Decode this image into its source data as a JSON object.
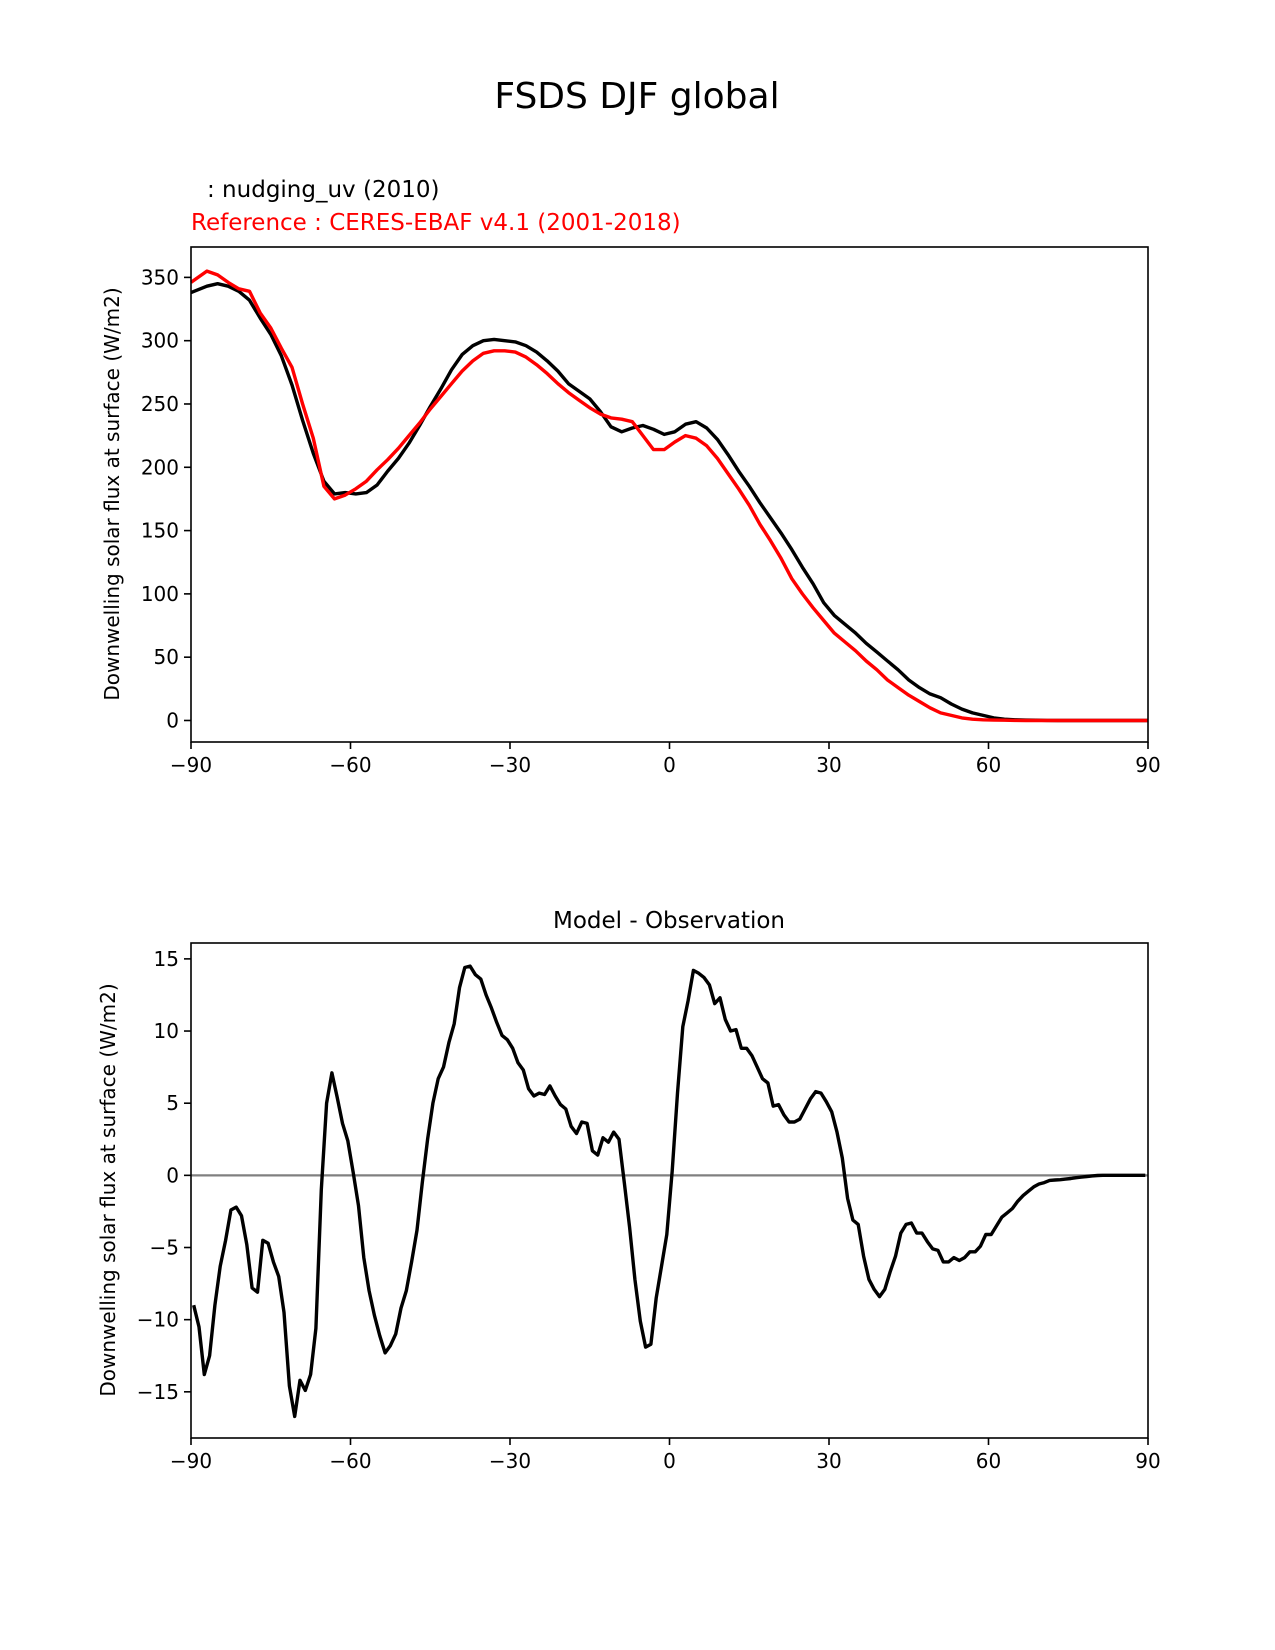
{
  "figure_title": "FSDS DJF global",
  "colors": {
    "model": "#000000",
    "reference": "#ff0000",
    "zero_line": "#808080",
    "axes": "#000000"
  },
  "chart_data": [
    {
      "type": "line",
      "id": "top",
      "test_label": ": nudging_uv (2010)",
      "ref_label": "Reference : CERES-EBAF v4.1 (2001-2018)",
      "title": "",
      "xlabel": "",
      "ylabel": "Downwelling solar flux at surface (W/m2)",
      "xlim": [
        -90,
        90
      ],
      "ylim": [
        -17,
        374
      ],
      "xticks": [
        -90,
        -60,
        -30,
        0,
        30,
        60,
        90
      ],
      "xtick_labels": [
        "−90",
        "−60",
        "−30",
        "0",
        "30",
        "60",
        "90"
      ],
      "yticks": [
        0,
        50,
        100,
        150,
        200,
        250,
        300,
        350
      ],
      "ytick_labels": [
        "0",
        "50",
        "100",
        "150",
        "200",
        "250",
        "300",
        "350"
      ],
      "series": [
        {
          "name": "nudging_uv (2010)",
          "color": "#000000",
          "x": [
            -90,
            -87,
            -85,
            -83,
            -81,
            -79,
            -77,
            -75,
            -73,
            -71,
            -69,
            -67,
            -65,
            -63,
            -61,
            -59,
            -57,
            -55,
            -53,
            -51,
            -49,
            -47,
            -45,
            -43,
            -41,
            -39,
            -37,
            -35,
            -33,
            -31,
            -29,
            -27,
            -25,
            -23,
            -21,
            -19,
            -17,
            -15,
            -13,
            -11,
            -9,
            -7,
            -5,
            -3,
            -1,
            1,
            3,
            5,
            7,
            9,
            11,
            13,
            15,
            17,
            19,
            21,
            23,
            25,
            27,
            29,
            31,
            33,
            35,
            37,
            39,
            41,
            43,
            45,
            47,
            49,
            51,
            53,
            55,
            57,
            59,
            61,
            63,
            65,
            67,
            69,
            71,
            73,
            75,
            77,
            79,
            81,
            84,
            87,
            90
          ],
          "y": [
            338,
            343,
            345,
            343,
            339,
            332,
            318,
            305,
            288,
            265,
            237,
            211,
            189,
            179,
            180,
            179,
            180,
            186,
            197,
            207,
            219,
            233,
            248,
            262,
            277,
            289,
            296,
            300,
            301,
            300,
            299,
            296,
            291,
            284,
            276,
            266,
            260,
            254,
            244,
            232,
            228,
            231,
            233,
            230,
            226,
            228,
            234,
            236,
            231,
            222,
            210,
            197,
            185,
            172,
            160,
            148,
            135,
            121,
            108,
            93,
            83,
            76,
            69,
            61,
            54,
            47,
            40,
            32,
            26,
            21,
            18,
            13,
            9,
            6,
            4,
            2,
            1,
            0.5,
            0.3,
            0.2,
            0.1,
            0,
            0,
            0,
            0,
            0,
            0,
            0,
            0
          ]
        },
        {
          "name": "CERES-EBAF v4.1 (2001-2018)",
          "color": "#ff0000",
          "x": [
            -90,
            -89,
            -87,
            -85,
            -83,
            -81,
            -79,
            -77,
            -75,
            -73,
            -71,
            -69,
            -67,
            -65,
            -63,
            -61,
            -59,
            -57,
            -55,
            -53,
            -51,
            -49,
            -47,
            -45,
            -43,
            -41,
            -39,
            -37,
            -35,
            -33,
            -31,
            -29,
            -27,
            -25,
            -23,
            -21,
            -19,
            -17,
            -15,
            -13,
            -11,
            -9,
            -7,
            -5,
            -3,
            -1,
            1,
            3,
            5,
            7,
            9,
            11,
            13,
            15,
            17,
            19,
            21,
            23,
            25,
            27,
            29,
            31,
            33,
            35,
            37,
            39,
            41,
            43,
            45,
            47,
            49,
            51,
            53,
            55,
            57,
            59,
            61,
            63,
            65,
            67,
            69,
            71,
            73,
            75,
            77,
            79,
            81,
            84,
            87,
            90
          ],
          "y": [
            346,
            349,
            355,
            352,
            346,
            341,
            339,
            322,
            310,
            294,
            279,
            250,
            223,
            185,
            175,
            178,
            183,
            189,
            198,
            206,
            215,
            225,
            235,
            246,
            256,
            266,
            276,
            284,
            290,
            292,
            292,
            291,
            287,
            281,
            274,
            266,
            259,
            253,
            247,
            242,
            239,
            238,
            236,
            225,
            214,
            214,
            220,
            225,
            223,
            217,
            207,
            195,
            183,
            170,
            155,
            142,
            128,
            112,
            100,
            89,
            79,
            69,
            62,
            55,
            47,
            40,
            32,
            26,
            20,
            15,
            10,
            6,
            4,
            2,
            1,
            0.5,
            0.3,
            0.2,
            0.1,
            0,
            0,
            0,
            0,
            0,
            0,
            0,
            0,
            0,
            0,
            0
          ]
        }
      ]
    },
    {
      "type": "line",
      "id": "bottom",
      "title": "Model - Observation",
      "xlabel": "",
      "ylabel": "Downwelling solar flux at surface (W/m2)",
      "xlim": [
        -90,
        90
      ],
      "ylim": [
        -18.2,
        16.1
      ],
      "xticks": [
        -90,
        -60,
        -30,
        0,
        30,
        60,
        90
      ],
      "xtick_labels": [
        "−90",
        "−60",
        "−30",
        "0",
        "30",
        "60",
        "90"
      ],
      "yticks": [
        -15,
        -10,
        -5,
        0,
        5,
        10,
        15
      ],
      "ytick_labels": [
        "−15",
        "−10",
        "−5",
        "0",
        "5",
        "10",
        "15"
      ],
      "zero_line": true,
      "series": [
        {
          "name": "Model - Observation",
          "color": "#000000",
          "x": [
            -89.5,
            -88.5,
            -87.5,
            -86.5,
            -85.5,
            -84.5,
            -83.5,
            -82.5,
            -81.5,
            -80.5,
            -79.5,
            -78.5,
            -77.5,
            -76.5,
            -75.5,
            -74.5,
            -73.5,
            -72.5,
            -71.5,
            -70.5,
            -69.5,
            -68.5,
            -67.5,
            -66.5,
            -65.5,
            -64.5,
            -63.5,
            -62.5,
            -61.5,
            -60.5,
            -59.5,
            -58.5,
            -57.5,
            -56.5,
            -55.5,
            -54.5,
            -53.5,
            -52.5,
            -51.5,
            -50.5,
            -49.5,
            -48.5,
            -47.5,
            -46.5,
            -45.5,
            -44.5,
            -43.5,
            -42.5,
            -41.5,
            -40.5,
            -39.5,
            -38.5,
            -37.5,
            -36.5,
            -35.5,
            -34.5,
            -33.5,
            -32.5,
            -31.5,
            -30.5,
            -29.5,
            -28.5,
            -27.5,
            -26.5,
            -25.5,
            -24.5,
            -23.5,
            -22.5,
            -21.5,
            -20.5,
            -19.5,
            -18.5,
            -17.5,
            -16.5,
            -15.5,
            -14.5,
            -13.5,
            -12.5,
            -11.5,
            -10.5,
            -9.5,
            -8.5,
            -7.5,
            -6.5,
            -5.5,
            -4.5,
            -3.5,
            -2.5,
            -1.5,
            -0.5,
            0.5,
            1.5,
            2.5,
            3.5,
            4.5,
            5.5,
            6.5,
            7.5,
            8.5,
            9.5,
            10.5,
            11.5,
            12.5,
            13.5,
            14.5,
            15.5,
            16.5,
            17.5,
            18.5,
            19.5,
            20.5,
            21.5,
            22.5,
            23.5,
            24.5,
            25.5,
            26.5,
            27.5,
            28.5,
            29.5,
            30.5,
            31.5,
            32.5,
            33.5,
            34.5,
            35.5,
            36.5,
            37.5,
            38.5,
            39.5,
            40.5,
            41.5,
            42.5,
            43.5,
            44.5,
            45.5,
            46.5,
            47.5,
            48.5,
            49.5,
            50.5,
            51.5,
            52.5,
            53.5,
            54.5,
            55.5,
            56.5,
            57.5,
            58.5,
            59.5,
            60.5,
            61.5,
            62.5,
            63.5,
            64.5,
            65.5,
            66.5,
            67.5,
            68.5,
            69.5,
            70.5,
            71.5,
            72.5,
            73.5,
            74.5,
            75.5,
            76.5,
            77.5,
            78.5,
            79.5,
            80.5,
            81.5,
            82.5,
            83.5,
            84.5,
            85.5,
            86.5,
            87.5,
            88.5,
            89.5
          ],
          "y": [
            -9.0,
            -10.5,
            -13.8,
            -12.5,
            -9.0,
            -6.3,
            -4.5,
            -2.4,
            -2.2,
            -2.8,
            -4.8,
            -7.8,
            -8.1,
            -4.5,
            -4.7,
            -6.0,
            -7.0,
            -9.5,
            -14.6,
            -16.7,
            -14.2,
            -14.9,
            -13.8,
            -10.6,
            -1.0,
            5.0,
            7.1,
            5.4,
            3.6,
            2.4,
            0.2,
            -2.1,
            -5.7,
            -8.0,
            -9.7,
            -11.1,
            -12.3,
            -11.8,
            -11.0,
            -9.2,
            -8.0,
            -6.0,
            -3.8,
            -0.5,
            2.5,
            5.0,
            6.7,
            7.5,
            9.2,
            10.5,
            13.0,
            14.4,
            14.5,
            13.9,
            13.6,
            12.5,
            11.6,
            10.6,
            9.7,
            9.4,
            8.8,
            7.8,
            7.3,
            6.0,
            5.5,
            5.7,
            5.6,
            6.2,
            5.5,
            4.9,
            4.6,
            3.4,
            2.9,
            3.7,
            3.6,
            1.7,
            1.4,
            2.6,
            2.3,
            3.0,
            2.5,
            -0.5,
            -3.6,
            -7.2,
            -10.1,
            -11.9,
            -11.7,
            -8.5,
            -6.3,
            -4.1,
            0.3,
            5.7,
            10.3,
            12.1,
            14.2,
            14.0,
            13.7,
            13.2,
            11.9,
            12.3,
            10.8,
            10.0,
            10.1,
            8.8,
            8.8,
            8.3,
            7.5,
            6.7,
            6.4,
            4.8,
            4.9,
            4.2,
            3.7,
            3.7,
            3.9,
            4.6,
            5.3,
            5.8,
            5.7,
            5.1,
            4.4,
            3.0,
            1.2,
            -1.6,
            -3.1,
            -3.4,
            -5.6,
            -7.2,
            -7.9,
            -8.4,
            -7.9,
            -6.7,
            -5.6,
            -4.0,
            -3.4,
            -3.3,
            -4.0,
            -4.0,
            -4.6,
            -5.1,
            -5.2,
            -6.0,
            -6.0,
            -5.7,
            -5.9,
            -5.7,
            -5.3,
            -5.3,
            -4.9,
            -4.1,
            -4.1,
            -3.5,
            -2.9,
            -2.6,
            -2.3,
            -1.8,
            -1.4,
            -1.1,
            -0.8,
            -0.6,
            -0.5,
            -0.35,
            -0.32,
            -0.3,
            -0.26,
            -0.22,
            -0.16,
            -0.12,
            -0.08,
            -0.04,
            -0.01,
            0.0,
            0.0,
            0.0,
            0.0,
            0.0,
            0.0,
            0.0,
            0.0,
            0.0
          ]
        }
      ]
    }
  ]
}
